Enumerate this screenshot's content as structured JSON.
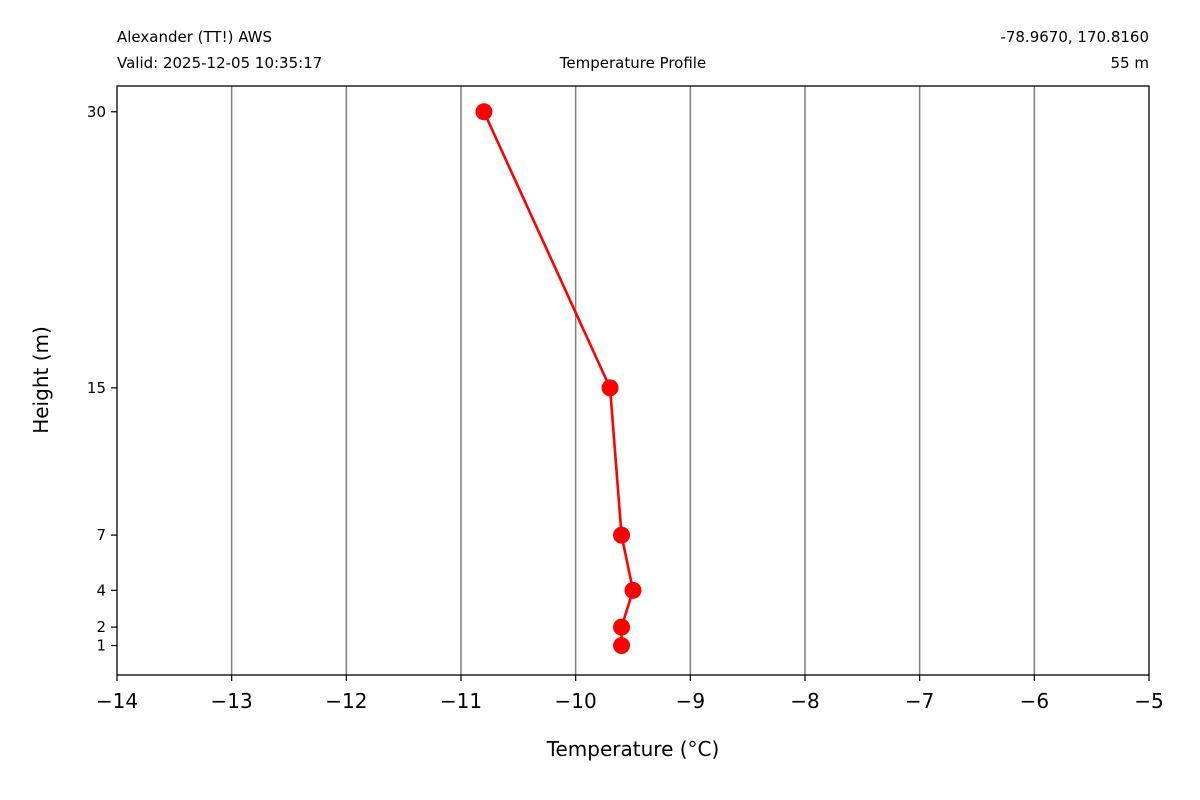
{
  "header": {
    "station": "Alexander (TT!) AWS",
    "valid": "Valid: 2025-12-05 10:35:17",
    "title": "Temperature Profile",
    "coords": "-78.9670, 170.8160",
    "elevation": "55 m"
  },
  "chart_data": {
    "type": "line",
    "title": "Temperature Profile",
    "xlabel": "Temperature (°C)",
    "ylabel": "Height (m)",
    "xlim": [
      -14,
      -5
    ],
    "ylim": [
      -0.6,
      31.4
    ],
    "x_ticks": [
      -14,
      -13,
      -12,
      -11,
      -10,
      -9,
      -8,
      -7,
      -6,
      -5
    ],
    "x_tick_labels": [
      "−14",
      "−13",
      "−12",
      "−11",
      "−10",
      "−9",
      "−8",
      "−7",
      "−6",
      "−5"
    ],
    "y_ticks": [
      1,
      2,
      4,
      7,
      15,
      30
    ],
    "y_tick_labels": [
      "1",
      "2",
      "4",
      "7",
      "15",
      "30"
    ],
    "grid": "vertical",
    "legend": "none",
    "series": [
      {
        "color": "#ff0000",
        "points": [
          {
            "height": 1,
            "temperature": -9.6
          },
          {
            "height": 2,
            "temperature": -9.6
          },
          {
            "height": 4,
            "temperature": -9.5
          },
          {
            "height": 7,
            "temperature": -9.6
          },
          {
            "height": 15,
            "temperature": -9.7
          },
          {
            "height": 30,
            "temperature": -10.8
          }
        ]
      }
    ],
    "colors": {
      "grid": "#808080",
      "axes": "#000000"
    }
  }
}
